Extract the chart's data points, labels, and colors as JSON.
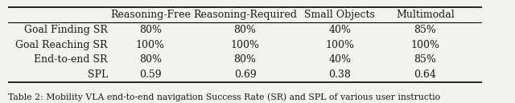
{
  "columns": [
    "",
    "Reasoning-Free",
    "Reasoning-Required",
    "Small Objects",
    "Multimodal"
  ],
  "rows": [
    [
      "Goal Finding SR",
      "80%",
      "80%",
      "40%",
      "85%"
    ],
    [
      "Goal Reaching SR",
      "100%",
      "100%",
      "100%",
      "100%"
    ],
    [
      "End-to-end SR",
      "80%",
      "80%",
      "40%",
      "85%"
    ],
    [
      "SPL",
      "0.59",
      "0.69",
      "0.38",
      "0.64"
    ]
  ],
  "caption": "Table 2: Mobility VLA end-to-end navigation Success Rate (SR) and SPL of various user instructio",
  "bg_color": "#f2f2ee",
  "text_color": "#1a1a1a",
  "header_fontsize": 9.0,
  "cell_fontsize": 9.0,
  "caption_fontsize": 7.8
}
